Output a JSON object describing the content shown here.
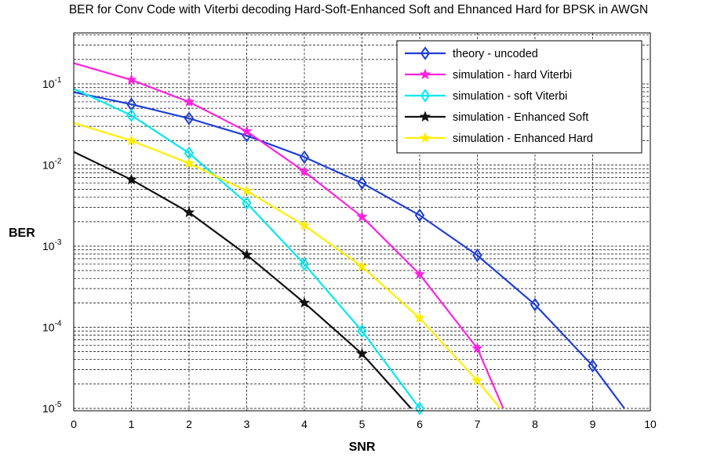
{
  "chart_data": {
    "type": "line",
    "title": "BER for Conv Code with Viterbi decoding Hard-Soft-Enhanced Soft and Ehnanced Hard for BPSK in AWGN",
    "xlabel": "SNR",
    "ylabel": "BER",
    "xlim": [
      0,
      10
    ],
    "ylim": [
      1e-05,
      0.5
    ],
    "yscale": "log",
    "grid": true,
    "legend_position": "top-right",
    "x_ticks": [
      "0",
      "1",
      "2",
      "3",
      "4",
      "5",
      "6",
      "7",
      "8",
      "9",
      "10"
    ],
    "y_ticks": [
      {
        "base": "10",
        "exp": "-1",
        "value": 0.1
      },
      {
        "base": "10",
        "exp": "-2",
        "value": 0.01
      },
      {
        "base": "10",
        "exp": "-3",
        "value": 0.001
      },
      {
        "base": "10",
        "exp": "-4",
        "value": 0.0001
      },
      {
        "base": "10",
        "exp": "-5",
        "value": 1e-05
      }
    ],
    "series": [
      {
        "name": "theory - uncoded",
        "color": "#1f3fd6",
        "marker": "diamond",
        "x": [
          0,
          1,
          2,
          3,
          4,
          5,
          6,
          7,
          8,
          9,
          9.55
        ],
        "y": [
          0.079,
          0.056,
          0.0375,
          0.023,
          0.0125,
          0.006,
          0.0024,
          0.00077,
          0.00019,
          3.35e-05,
          1e-05
        ],
        "marker_x": [
          1,
          2,
          3,
          4,
          5,
          6,
          7,
          8,
          9
        ]
      },
      {
        "name": "simulation - hard Viterbi",
        "color": "#ff22dd",
        "marker": "star",
        "x": [
          0,
          1,
          2,
          3,
          4,
          5,
          6,
          7,
          7.45
        ],
        "y": [
          0.18,
          0.112,
          0.06,
          0.026,
          0.0083,
          0.0023,
          0.00045,
          5.5e-05,
          1e-05
        ],
        "marker_x": [
          1,
          2,
          3,
          4,
          5,
          6,
          7
        ]
      },
      {
        "name": "simulation - soft Viterbi",
        "color": "#00e8f0",
        "marker": "diamond",
        "x": [
          0,
          1,
          2,
          3,
          4,
          5,
          6
        ],
        "y": [
          0.087,
          0.041,
          0.014,
          0.0034,
          0.0006,
          9e-05,
          1e-05
        ],
        "marker_x": [
          1,
          2,
          3,
          4,
          5,
          6
        ]
      },
      {
        "name": "simulation - Enhanced Soft",
        "color": "#111111",
        "marker": "star",
        "x": [
          0,
          1,
          2,
          3,
          4,
          5,
          5.85
        ],
        "y": [
          0.0145,
          0.0066,
          0.0026,
          0.00078,
          0.0002,
          4.7e-05,
          1e-05
        ],
        "marker_x": [
          1,
          2,
          3,
          4,
          5
        ]
      },
      {
        "name": "simulation - Enhanced Hard",
        "color": "#ffee00",
        "marker": "star",
        "x": [
          0,
          1,
          2,
          3,
          4,
          5,
          6,
          7,
          7.4
        ],
        "y": [
          0.033,
          0.02,
          0.0105,
          0.0048,
          0.0018,
          0.00056,
          0.00013,
          2.2e-05,
          1e-05
        ],
        "marker_x": [
          1,
          2,
          3,
          4,
          5,
          6,
          7
        ]
      }
    ]
  }
}
